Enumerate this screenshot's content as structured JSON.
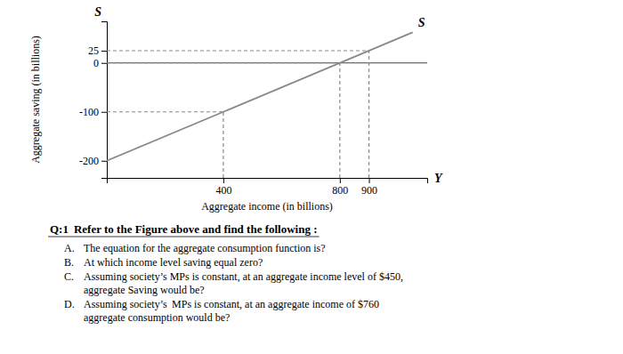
{
  "chart_data": {
    "type": "line",
    "xlabel": "Aggregate income (in billions)",
    "ylabel": "Aggregate saving (in billions)",
    "axis_symbols": {
      "x": "Y",
      "y": "S"
    },
    "x": [
      0,
      1050
    ],
    "series": [
      {
        "name": "S",
        "color": "#888888",
        "values": [
          -200,
          62.5
        ]
      }
    ],
    "reference_points": [
      {
        "x": 400,
        "y": -100
      },
      {
        "x": 800,
        "y": 0
      },
      {
        "x": 900,
        "y": 25
      }
    ],
    "hlines": [
      0
    ],
    "xlim": [
      0,
      1100
    ],
    "ylim": [
      -235,
      85
    ],
    "xticks": [
      400,
      800,
      900
    ],
    "yticks": [
      25,
      0,
      -100,
      -200
    ],
    "grid": false,
    "annotations": {
      "heading": "Q:1",
      "prompt": "Refer to the Figure above and find the following :",
      "items": [
        {
          "label": "A.",
          "lines": [
            "The equation for the aggregate consumption function is?"
          ]
        },
        {
          "label": "B.",
          "lines": [
            "At which income level saving equal zero?"
          ]
        },
        {
          "label": "C.",
          "lines": [
            "Assuming society’s MPs is constant, at an aggregate income level of $450,",
            "aggregate Saving would be?"
          ]
        },
        {
          "label": "D.",
          "lines": [
            "Assuming society’s  MPs is constant, at an aggregate income of $760",
            "aggregate consumption would be?"
          ]
        }
      ]
    }
  }
}
